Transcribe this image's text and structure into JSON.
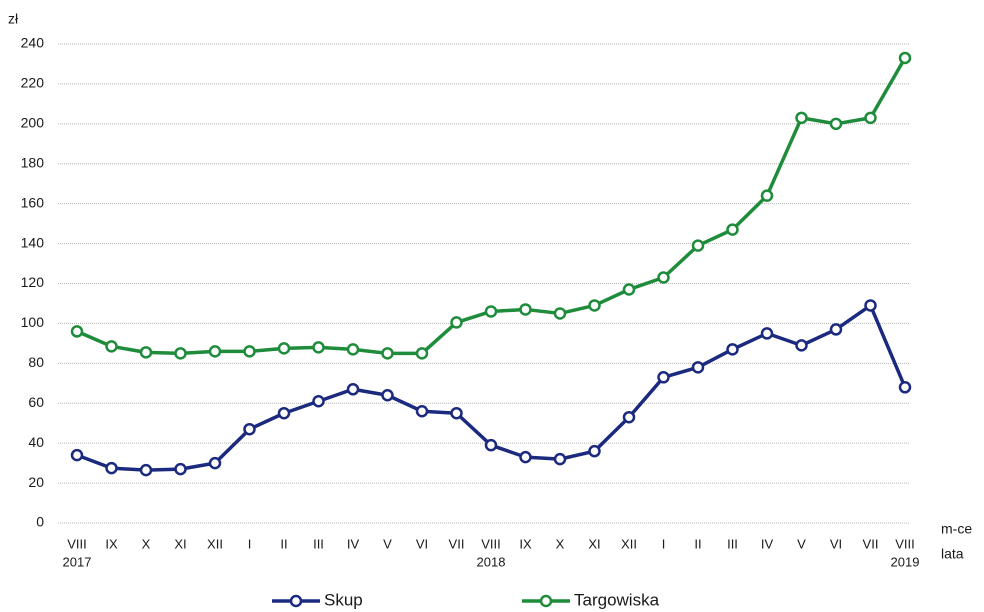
{
  "chart_data": {
    "type": "line",
    "y_label": "zł",
    "x_label": "m-ce",
    "x_group_label": "lata",
    "categories": [
      "VIII",
      "IX",
      "X",
      "XI",
      "XII",
      "I",
      "II",
      "III",
      "IV",
      "V",
      "VI",
      "VII",
      "VIII",
      "IX",
      "X",
      "XI",
      "XII",
      "I",
      "II",
      "III",
      "IV",
      "V",
      "VI",
      "VII",
      "VIII"
    ],
    "years": [
      "2017",
      null,
      null,
      null,
      null,
      null,
      null,
      null,
      null,
      null,
      null,
      null,
      "2018",
      null,
      null,
      null,
      null,
      null,
      null,
      null,
      null,
      null,
      null,
      null,
      "2019"
    ],
    "series": [
      {
        "name": "Skup",
        "color": "#1b2a7f",
        "values": [
          34,
          27.5,
          26.5,
          27,
          30,
          47,
          55,
          61,
          67,
          64,
          56,
          55,
          39,
          33,
          32,
          36,
          53,
          73,
          78,
          87,
          95,
          89,
          97,
          109,
          68
        ]
      },
      {
        "name": "Targowiska",
        "color": "#1e8c3a",
        "values": [
          96,
          88.5,
          85.5,
          85,
          86,
          86,
          87.5,
          88,
          87,
          85,
          85,
          100.5,
          106,
          107,
          105,
          109,
          117,
          123,
          139,
          147,
          164,
          203,
          200,
          203,
          233
        ]
      }
    ],
    "ylim": [
      0,
      240
    ],
    "yticks": [
      0,
      20,
      40,
      60,
      80,
      100,
      120,
      140,
      160,
      180,
      200,
      220,
      240
    ],
    "grid": true
  }
}
